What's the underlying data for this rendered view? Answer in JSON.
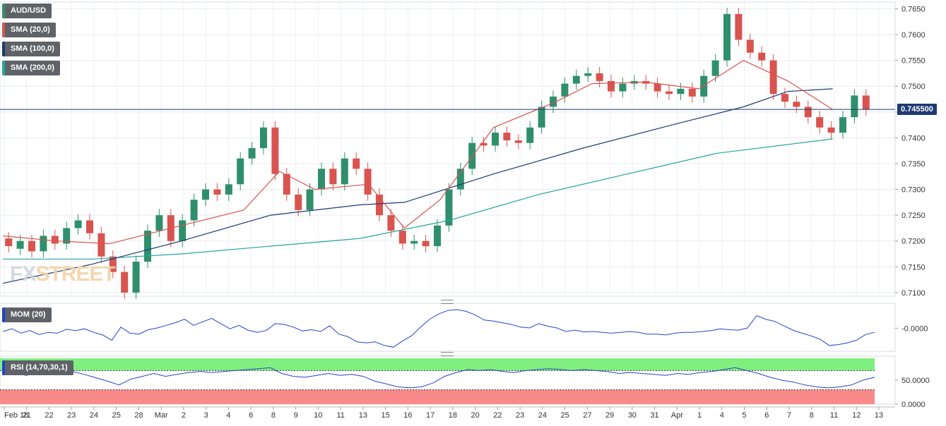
{
  "chart_data": {
    "type": "candlestick",
    "symbol": "AUD/USD",
    "legend": [
      {
        "label": "AUD/USD",
        "color": "#3a8f6e"
      },
      {
        "label": "SMA (20,0)",
        "color": "#d9534f"
      },
      {
        "label": "SMA (100,0)",
        "color": "#1f3a72"
      },
      {
        "label": "SMA (200,0)",
        "color": "#26a69a"
      }
    ],
    "price_tag": "0.745500",
    "current_price": 0.7455,
    "y_ticks": [
      "0.7650",
      "0.7600",
      "0.7550",
      "0.7500",
      "0.7450",
      "0.7400",
      "0.7350",
      "0.7300",
      "0.7250",
      "0.7200",
      "0.7150",
      "0.7100"
    ],
    "ylim": [
      0.7093,
      0.7663
    ],
    "x_labels": [
      "Feb 18",
      "21",
      "22",
      "23",
      "24",
      "25",
      "28",
      "Mar",
      "2",
      "3",
      "4",
      "6",
      "8",
      "9",
      "10",
      "11",
      "13",
      "15",
      "16",
      "17",
      "18",
      "20",
      "22",
      "23",
      "24",
      "25",
      "27",
      "29",
      "30",
      "31",
      "Apr",
      "1",
      "4",
      "5",
      "6",
      "7",
      "8",
      "11",
      "12",
      "13"
    ],
    "ohlc_anchors": [
      [
        0.7205,
        0.719
      ],
      [
        0.7185,
        0.72
      ],
      [
        0.72,
        0.718
      ],
      [
        0.718,
        0.721
      ],
      [
        0.721,
        0.7195
      ],
      [
        0.7195,
        0.7225
      ],
      [
        0.7225,
        0.724
      ],
      [
        0.724,
        0.7215
      ],
      [
        0.7215,
        0.717
      ],
      [
        0.717,
        0.714
      ],
      [
        0.714,
        0.71
      ],
      [
        0.71,
        0.716
      ],
      [
        0.716,
        0.722
      ],
      [
        0.722,
        0.725
      ],
      [
        0.725,
        0.72
      ],
      [
        0.72,
        0.724
      ],
      [
        0.724,
        0.728
      ],
      [
        0.728,
        0.73
      ],
      [
        0.73,
        0.729
      ],
      [
        0.729,
        0.731
      ],
      [
        0.731,
        0.736
      ],
      [
        0.736,
        0.738
      ],
      [
        0.738,
        0.742
      ],
      [
        0.742,
        0.733
      ],
      [
        0.733,
        0.729
      ],
      [
        0.729,
        0.726
      ],
      [
        0.726,
        0.73
      ],
      [
        0.73,
        0.734
      ],
      [
        0.734,
        0.731
      ],
      [
        0.731,
        0.736
      ],
      [
        0.736,
        0.734
      ],
      [
        0.734,
        0.729
      ],
      [
        0.729,
        0.725
      ],
      [
        0.725,
        0.722
      ],
      [
        0.722,
        0.7195
      ],
      [
        0.7195,
        0.72
      ],
      [
        0.72,
        0.719
      ],
      [
        0.719,
        0.723
      ],
      [
        0.723,
        0.73
      ],
      [
        0.73,
        0.734
      ],
      [
        0.734,
        0.739
      ],
      [
        0.739,
        0.7385
      ],
      [
        0.7385,
        0.741
      ],
      [
        0.741,
        0.7395
      ],
      [
        0.7395,
        0.739
      ],
      [
        0.739,
        0.742
      ],
      [
        0.742,
        0.746
      ],
      [
        0.746,
        0.748
      ],
      [
        0.748,
        0.7505
      ],
      [
        0.7505,
        0.752
      ],
      [
        0.752,
        0.7525
      ],
      [
        0.7525,
        0.751
      ],
      [
        0.751,
        0.749
      ],
      [
        0.749,
        0.7505
      ],
      [
        0.7505,
        0.751
      ],
      [
        0.751,
        0.7505
      ],
      [
        0.7505,
        0.749
      ],
      [
        0.749,
        0.7485
      ],
      [
        0.7485,
        0.7495
      ],
      [
        0.7495,
        0.748
      ],
      [
        0.748,
        0.752
      ],
      [
        0.752,
        0.755
      ],
      [
        0.755,
        0.764
      ],
      [
        0.764,
        0.759
      ],
      [
        0.759,
        0.7565
      ],
      [
        0.7565,
        0.755
      ],
      [
        0.755,
        0.7485
      ],
      [
        0.7485,
        0.747
      ],
      [
        0.747,
        0.746
      ],
      [
        0.746,
        0.744
      ],
      [
        0.744,
        0.742
      ],
      [
        0.742,
        0.741
      ],
      [
        0.741,
        0.744
      ],
      [
        0.744,
        0.7482
      ],
      [
        0.7482,
        0.7455
      ]
    ],
    "sma20": [
      [
        0,
        0.721
      ],
      [
        0.06,
        0.72
      ],
      [
        0.12,
        0.7195
      ],
      [
        0.2,
        0.723
      ],
      [
        0.27,
        0.726
      ],
      [
        0.31,
        0.7335
      ],
      [
        0.35,
        0.73
      ],
      [
        0.41,
        0.731
      ],
      [
        0.45,
        0.7225
      ],
      [
        0.49,
        0.728
      ],
      [
        0.55,
        0.742
      ],
      [
        0.62,
        0.747
      ],
      [
        0.66,
        0.7505
      ],
      [
        0.72,
        0.7508
      ],
      [
        0.78,
        0.7495
      ],
      [
        0.83,
        0.755
      ],
      [
        0.88,
        0.751
      ],
      [
        0.93,
        0.7455
      ]
    ],
    "sma100": [
      [
        0,
        0.7118
      ],
      [
        0.1,
        0.7155
      ],
      [
        0.2,
        0.72
      ],
      [
        0.3,
        0.725
      ],
      [
        0.4,
        0.727
      ],
      [
        0.45,
        0.7275
      ],
      [
        0.55,
        0.733
      ],
      [
        0.65,
        0.738
      ],
      [
        0.75,
        0.7425
      ],
      [
        0.83,
        0.746
      ],
      [
        0.88,
        0.749
      ],
      [
        0.93,
        0.7495
      ]
    ],
    "sma200": [
      [
        0,
        0.7165
      ],
      [
        0.1,
        0.7165
      ],
      [
        0.2,
        0.7175
      ],
      [
        0.3,
        0.719
      ],
      [
        0.4,
        0.7205
      ],
      [
        0.5,
        0.724
      ],
      [
        0.6,
        0.729
      ],
      [
        0.7,
        0.733
      ],
      [
        0.8,
        0.737
      ],
      [
        0.93,
        0.7398
      ]
    ],
    "momentum": {
      "label": "MOM (20)",
      "tick": "-0.0000",
      "values": [
        0.42,
        0.48,
        0.38,
        0.44,
        0.35,
        0.4,
        0.38,
        0.47,
        0.44,
        0.48,
        0.4,
        0.34,
        0.22,
        0.52,
        0.38,
        0.36,
        0.46,
        0.5,
        0.56,
        0.62,
        0.7,
        0.56,
        0.64,
        0.72,
        0.6,
        0.48,
        0.56,
        0.45,
        0.4,
        0.44,
        0.6,
        0.58,
        0.52,
        0.43,
        0.46,
        0.42,
        0.55,
        0.36,
        0.3,
        0.18,
        0.16,
        0.18,
        0.1,
        0.06,
        0.2,
        0.32,
        0.52,
        0.7,
        0.82,
        0.9,
        0.92,
        0.88,
        0.8,
        0.68,
        0.66,
        0.62,
        0.58,
        0.52,
        0.5,
        0.6,
        0.54,
        0.5,
        0.42,
        0.45,
        0.41,
        0.42,
        0.4,
        0.38,
        0.4,
        0.42,
        0.4,
        0.36,
        0.36,
        0.34,
        0.38,
        0.4,
        0.4,
        0.42,
        0.44,
        0.48,
        0.46,
        0.45,
        0.5,
        0.78,
        0.7,
        0.65,
        0.55,
        0.45,
        0.38,
        0.32,
        0.24,
        0.1,
        0.12,
        0.16,
        0.22,
        0.35,
        0.4
      ]
    },
    "rsi": {
      "label": "RSI (14,70,30,1)",
      "ticks": [
        "50.0000",
        "0.0000"
      ],
      "upper": 70,
      "lower": 30,
      "values": [
        70,
        65,
        60,
        65,
        62,
        66,
        68,
        62,
        55,
        48,
        40,
        52,
        58,
        64,
        58,
        62,
        66,
        68,
        66,
        68,
        70,
        72,
        74,
        76,
        64,
        58,
        56,
        60,
        64,
        60,
        62,
        58,
        48,
        42,
        36,
        34,
        36,
        44,
        58,
        66,
        72,
        70,
        72,
        68,
        66,
        70,
        72,
        74,
        72,
        70,
        72,
        70,
        68,
        64,
        66,
        64,
        62,
        60,
        64,
        62,
        66,
        68,
        72,
        76,
        70,
        64,
        56,
        50,
        46,
        40,
        36,
        34,
        36,
        40,
        50,
        56
      ]
    }
  }
}
